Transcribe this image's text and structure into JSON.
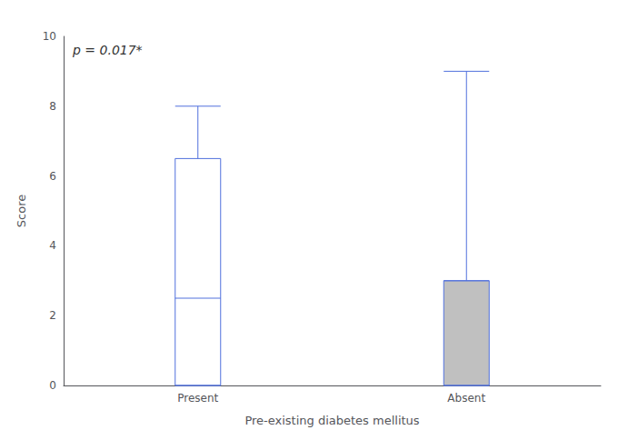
{
  "chart_data": {
    "type": "boxplot",
    "xlabel": "Pre-existing diabetes mellitus",
    "ylabel": "Score",
    "categories": [
      "Present",
      "Absent"
    ],
    "boxes": [
      {
        "whisker_low": 0,
        "q1": 0,
        "median": 2.5,
        "q3": 6.5,
        "whisker_high": 8
      },
      {
        "whisker_low": 0,
        "q1": 0,
        "median": 3,
        "q3": 3,
        "whisker_high": 9
      }
    ],
    "colors": [
      "#ffffff",
      "#c0c0c0"
    ],
    "ylim": [
      0,
      10
    ],
    "yticks": [
      0,
      2,
      4,
      6,
      8,
      10
    ],
    "annotation": "p = 0.017*",
    "grid": false
  }
}
